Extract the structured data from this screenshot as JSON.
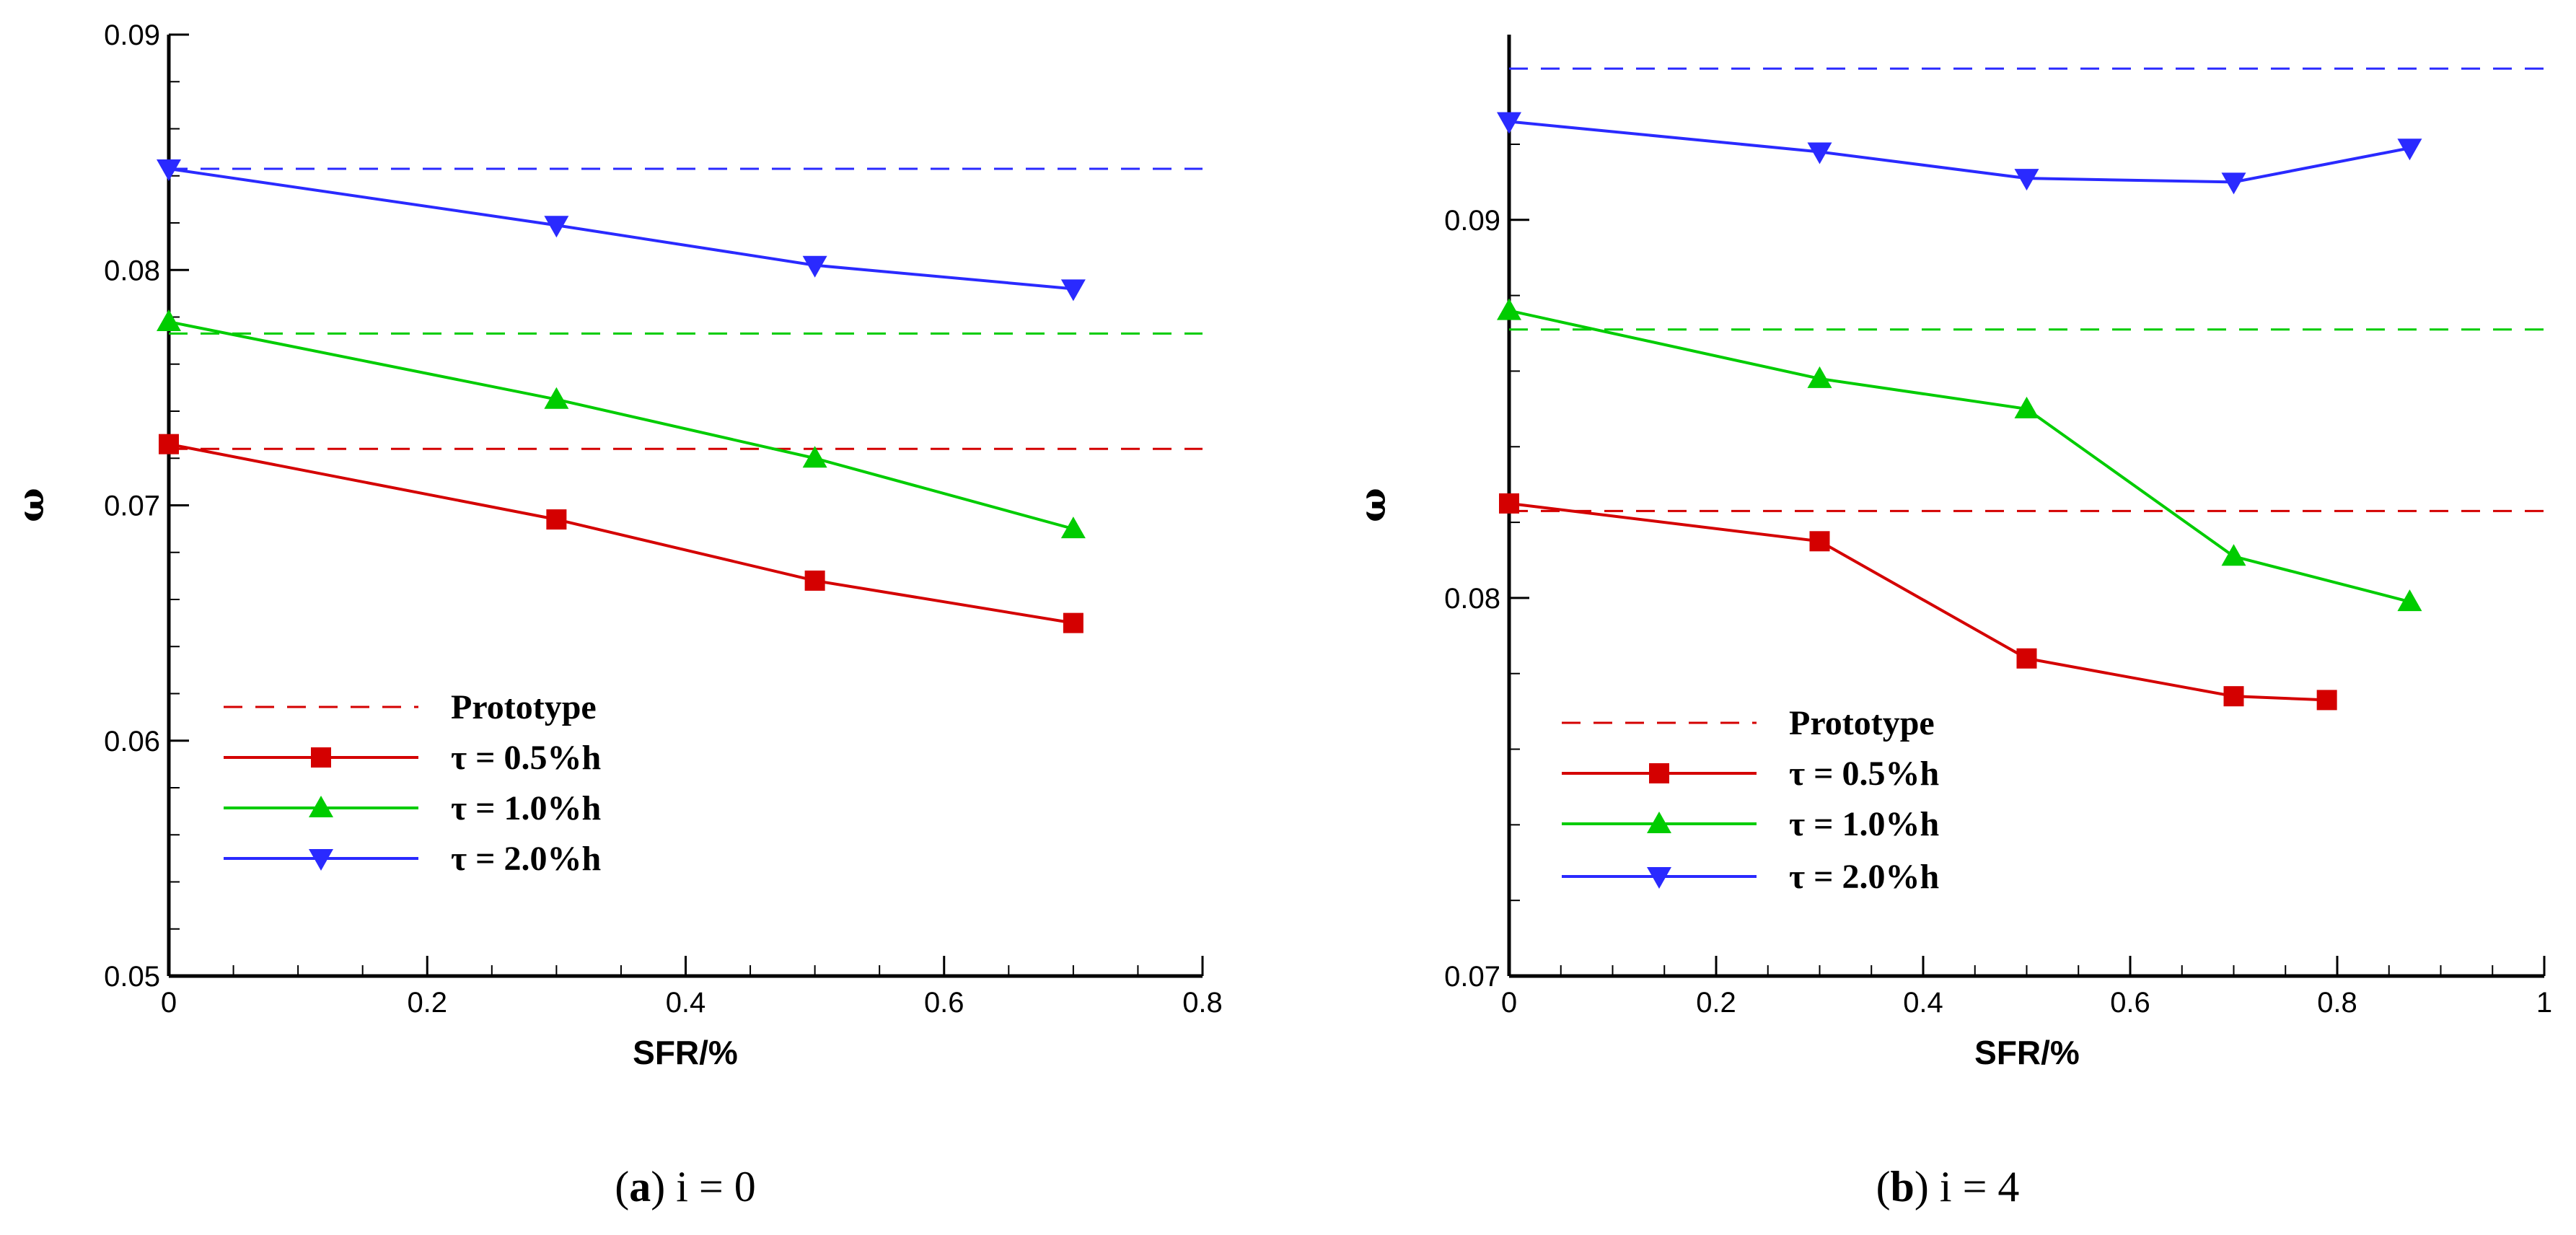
{
  "colors": {
    "red": "#d40000",
    "green": "#00cc00",
    "blue": "#2a2aff",
    "axis": "#000000"
  },
  "chart_data": [
    {
      "type": "line",
      "panel": "a",
      "caption_letter": "a",
      "caption_rest": " i = 0",
      "xlabel": "SFR/%",
      "ylabel": "ω",
      "xlim": [
        0,
        0.8
      ],
      "ylim": [
        0.05,
        0.09
      ],
      "x_ticks": [
        0,
        0.2,
        0.4,
        0.6,
        0.8
      ],
      "x_tick_labels": [
        "0",
        "0.2",
        "0.4",
        "0.6",
        "0.8"
      ],
      "y_ticks": [
        0.05,
        0.06,
        0.07,
        0.08,
        0.09
      ],
      "y_tick_labels": [
        "0.05",
        "0.06",
        "0.07",
        "0.08",
        "0.09"
      ],
      "prototype_label": "Prototype",
      "prototype_lines": [
        {
          "color": "red",
          "y": 0.0724
        },
        {
          "color": "green",
          "y": 0.0773
        },
        {
          "color": "blue",
          "y": 0.0843
        }
      ],
      "series": [
        {
          "name": "τ = 0.5%h",
          "color": "red",
          "marker": "square",
          "x": [
            0,
            0.3,
            0.5,
            0.7
          ],
          "y": [
            0.0726,
            0.0694,
            0.0668,
            0.065
          ]
        },
        {
          "name": "τ = 1.0%h",
          "color": "green",
          "marker": "triangle-up",
          "x": [
            0,
            0.3,
            0.5,
            0.7
          ],
          "y": [
            0.0778,
            0.0745,
            0.072,
            0.069
          ]
        },
        {
          "name": "τ = 2.0%h",
          "color": "blue",
          "marker": "triangle-down",
          "x": [
            0,
            0.3,
            0.5,
            0.7
          ],
          "y": [
            0.0843,
            0.0819,
            0.0802,
            0.0792
          ]
        }
      ]
    },
    {
      "type": "line",
      "panel": "b",
      "caption_letter": "b",
      "caption_rest": " i = 4",
      "xlabel": "SFR/%",
      "ylabel": "ω",
      "xlim": [
        0,
        1
      ],
      "ylim": [
        0.07,
        0.0949
      ],
      "x_ticks": [
        0,
        0.2,
        0.4,
        0.6,
        0.8,
        1
      ],
      "x_tick_labels": [
        "0",
        "0.2",
        "0.4",
        "0.6",
        "0.8",
        "1"
      ],
      "y_ticks": [
        0.07,
        0.08,
        0.09
      ],
      "y_tick_labels": [
        "0.07",
        "0.08",
        "0.09"
      ],
      "prototype_label": "Prototype",
      "prototype_lines": [
        {
          "color": "red",
          "y": 0.0823
        },
        {
          "color": "green",
          "y": 0.0871
        },
        {
          "color": "blue",
          "y": 0.094
        }
      ],
      "series": [
        {
          "name": "τ = 0.5%h",
          "color": "red",
          "marker": "square",
          "x": [
            0,
            0.3,
            0.5,
            0.7,
            0.79
          ],
          "y": [
            0.0825,
            0.0815,
            0.0784,
            0.0774,
            0.0773
          ]
        },
        {
          "name": "τ = 1.0%h",
          "color": "green",
          "marker": "triangle-up",
          "x": [
            0,
            0.3,
            0.5,
            0.7,
            0.87
          ],
          "y": [
            0.0876,
            0.0858,
            0.085,
            0.0811,
            0.0799
          ]
        },
        {
          "name": "τ = 2.0%h",
          "color": "blue",
          "marker": "triangle-down",
          "x": [
            0,
            0.3,
            0.5,
            0.7,
            0.87
          ],
          "y": [
            0.0926,
            0.0918,
            0.0911,
            0.091,
            0.0919
          ]
        }
      ]
    }
  ]
}
